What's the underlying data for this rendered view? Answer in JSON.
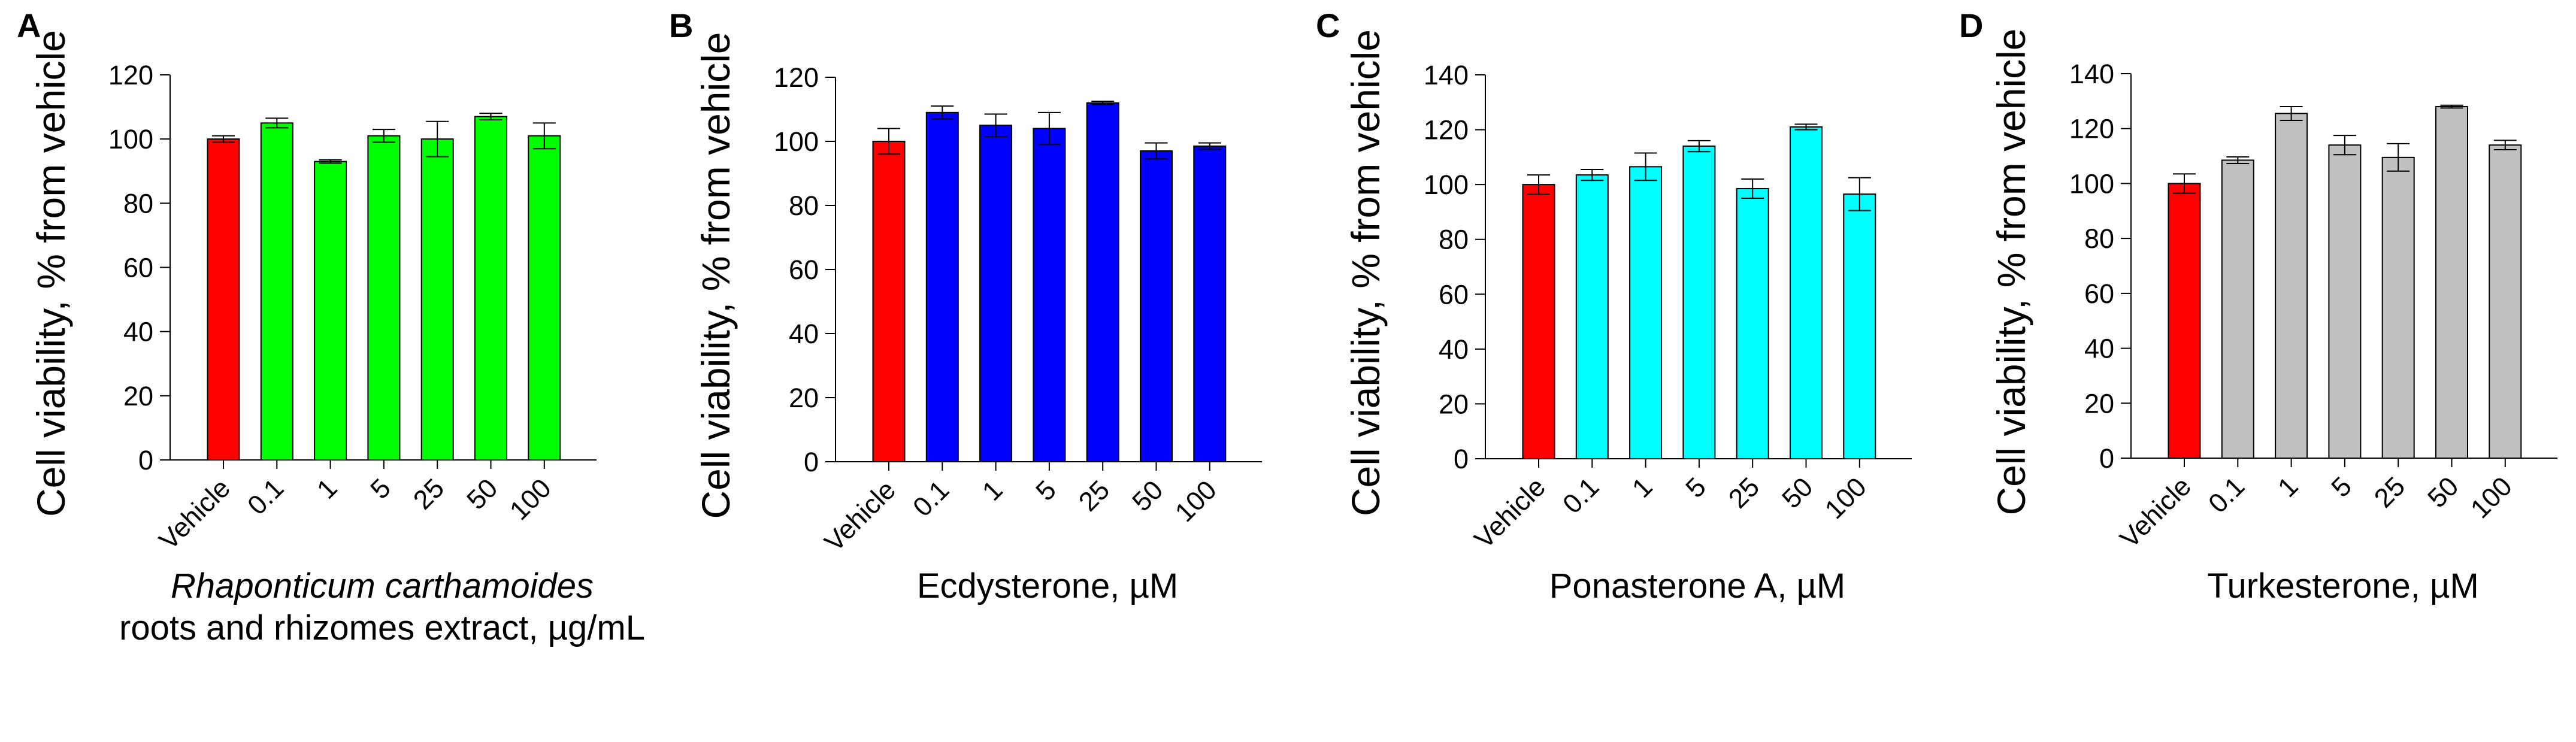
{
  "chart_data": [
    {
      "type": "bar",
      "panel_label": "A",
      "categories": [
        "Vehicle",
        "0.1",
        "1",
        "5",
        "25",
        "50",
        "100"
      ],
      "values": [
        100,
        105,
        93,
        101,
        100,
        107,
        101
      ],
      "errors": [
        1,
        1.5,
        0.5,
        2,
        5.5,
        1,
        4
      ],
      "colors": [
        "#ff0000",
        "#00ff00",
        "#00ff00",
        "#00ff00",
        "#00ff00",
        "#00ff00",
        "#00ff00"
      ],
      "ylabel": "Cell viability, % from vehicle",
      "xlabel_lines": [
        "Rhaponticum carthamoides",
        "roots and rhizomes extract, µg/mL"
      ],
      "xlabel_italic_first": true,
      "ylim": [
        0,
        120
      ],
      "yticks": [
        "0",
        "20",
        "40",
        "60",
        "80",
        "100",
        "120"
      ],
      "grid": false
    },
    {
      "type": "bar",
      "panel_label": "B",
      "categories": [
        "Vehicle",
        "0.1",
        "1",
        "5",
        "25",
        "50",
        "100"
      ],
      "values": [
        100,
        109,
        105,
        104,
        112,
        97,
        98.5
      ],
      "errors": [
        4,
        2,
        3.5,
        5,
        0.5,
        2.5,
        1
      ],
      "colors": [
        "#ff0000",
        "#0000ff",
        "#0000ff",
        "#0000ff",
        "#0000ff",
        "#0000ff",
        "#0000ff"
      ],
      "ylabel": "Cell viability, % from vehicle",
      "xlabel_lines": [
        "Ecdysterone, µM"
      ],
      "ylim": [
        0,
        120
      ],
      "yticks": [
        "0",
        "20",
        "40",
        "60",
        "80",
        "100",
        "120"
      ],
      "grid": false
    },
    {
      "type": "bar",
      "panel_label": "C",
      "categories": [
        "Vehicle",
        "0.1",
        "1",
        "5",
        "25",
        "50",
        "100"
      ],
      "values": [
        100,
        103.5,
        106.5,
        114,
        98.5,
        121,
        96.5
      ],
      "errors": [
        3.5,
        2,
        5,
        2,
        3.5,
        1,
        6
      ],
      "colors": [
        "#ff0000",
        "#00ffff",
        "#00ffff",
        "#00ffff",
        "#00ffff",
        "#00ffff",
        "#00ffff"
      ],
      "ylabel": "Cell viability, % from vehicle",
      "xlabel_lines": [
        "Ponasterone A, µM"
      ],
      "ylim": [
        0,
        140
      ],
      "yticks": [
        "0",
        "20",
        "40",
        "60",
        "80",
        "100",
        "120",
        "140"
      ],
      "grid": false
    },
    {
      "type": "bar",
      "panel_label": "D",
      "categories": [
        "Vehicle",
        "0.1",
        "1",
        "5",
        "25",
        "50",
        "100"
      ],
      "values": [
        100,
        108.5,
        125.5,
        114,
        109.5,
        128,
        114
      ],
      "errors": [
        3.5,
        1.2,
        2.5,
        3.5,
        5,
        0.5,
        1.7
      ],
      "colors": [
        "#ff0000",
        "#c0c0c0",
        "#c0c0c0",
        "#c0c0c0",
        "#c0c0c0",
        "#c0c0c0",
        "#c0c0c0"
      ],
      "ylabel": "Cell viability, % from vehicle",
      "xlabel_lines": [
        "Turkesterone, µM"
      ],
      "ylim": [
        0,
        140
      ],
      "yticks": [
        "0",
        "20",
        "40",
        "60",
        "80",
        "100",
        "120",
        "140"
      ],
      "grid": false
    }
  ]
}
